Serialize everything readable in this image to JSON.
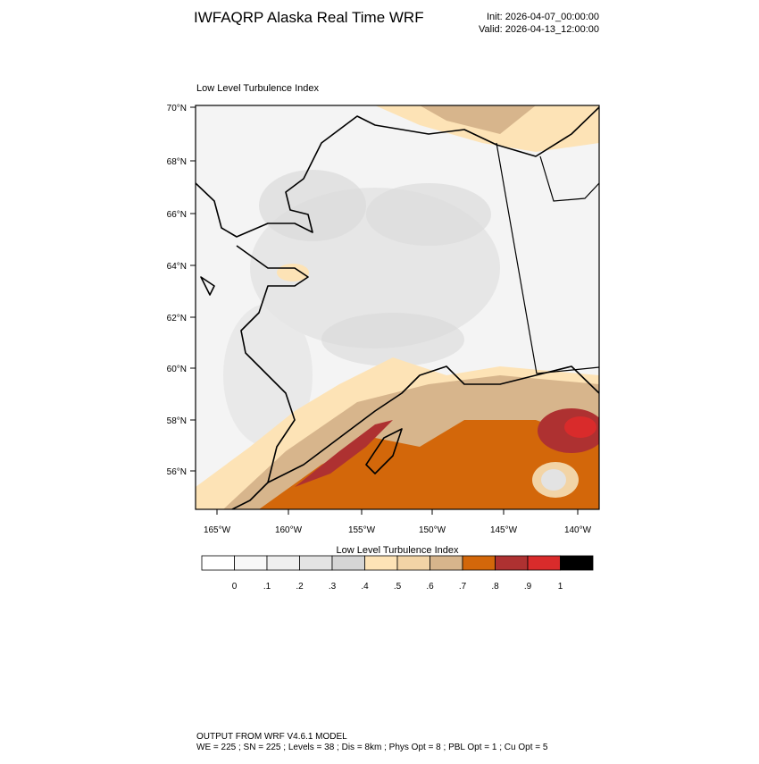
{
  "header": {
    "title": "IWFAQRP Alaska Real Time WRF",
    "init": "Init: 2026-04-07_00:00:00",
    "valid": "Valid: 2026-04-13_12:00:00"
  },
  "map": {
    "title": "Low Level Turbulence Index",
    "lat_labels": [
      "70°N",
      "68°N",
      "66°N",
      "64°N",
      "62°N",
      "60°N",
      "58°N",
      "56°N"
    ],
    "lon_labels": [
      "165°W",
      "160°W",
      "155°W",
      "150°W",
      "145°W",
      "140°W"
    ]
  },
  "colorbar": {
    "title": "Low Level Turbulence Index",
    "labels": [
      "0",
      ".1",
      ".2",
      ".3",
      ".4",
      ".5",
      ".6",
      ".7",
      ".8",
      ".9",
      "1"
    ],
    "colors": [
      "#ffffff",
      "#f8f8f8",
      "#efefef",
      "#e3e3e3",
      "#d5d5d5",
      "#fde3b6",
      "#f2d4a6",
      "#d7b58c",
      "#d3670a",
      "#ae3131",
      "#d92b2b",
      "#000000"
    ]
  },
  "footer": {
    "line1": "OUTPUT FROM WRF V4.6.1 MODEL",
    "line2": "WE = 225 ; SN = 225 ; Levels = 38 ; Dis = 8km ; Phys Opt = 8 ; PBL Opt = 1 ; Cu Opt = 5"
  }
}
